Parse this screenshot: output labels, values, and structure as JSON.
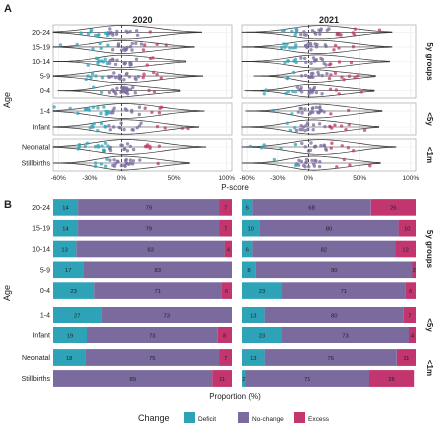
{
  "chart_data": [
    {
      "panel": "A",
      "type": "scatter",
      "subtype": "violin-jitter",
      "xlabel": "P-score",
      "ylabel": "Age",
      "columns": [
        "2020",
        "2021"
      ],
      "x_ticks": [
        "-60%",
        "-30%",
        "0%",
        "50%",
        "100%"
      ],
      "x_tick_values": [
        -0.6,
        -0.3,
        0,
        0.5,
        1.0
      ],
      "xlim": [
        -0.65,
        1.05
      ],
      "vertical_reference_line": 0,
      "grid": true,
      "row_groups": [
        {
          "label": "5y groups",
          "categories": [
            "20-24",
            "15-19",
            "10-14",
            "5-9",
            "0-4"
          ]
        },
        {
          "label": "<5y",
          "categories": [
            "1-4",
            "Infant"
          ]
        },
        {
          "label": "<1m",
          "categories": [
            "Neonatal",
            "Stillbirths"
          ]
        }
      ],
      "point_color_meaning": {
        "deficit": "#2ea3b8",
        "no_change": "#7a6a9e",
        "excess": "#c2356e"
      }
    },
    {
      "panel": "B",
      "type": "bar",
      "orientation": "horizontal",
      "stacked": true,
      "xlabel": "Proportion (%)",
      "ylabel": "Age",
      "columns": [
        "2020",
        "2021"
      ],
      "legend": {
        "title": "Change",
        "position": "bottom",
        "entries": [
          {
            "key": "deficit",
            "label": "Deficit",
            "color": "#2ea3b8"
          },
          {
            "key": "no_change",
            "label": "No-change",
            "color": "#7a6a9e"
          },
          {
            "key": "excess",
            "label": "Excess",
            "color": "#c2356e"
          }
        ]
      },
      "row_groups": [
        {
          "label": "5y groups",
          "categories": [
            "20-24",
            "15-19",
            "10-14",
            "5-9",
            "0-4"
          ]
        },
        {
          "label": "<5y",
          "categories": [
            "1-4",
            "Infant"
          ]
        },
        {
          "label": "<1m",
          "categories": [
            "Neonatal",
            "Stillbirths"
          ]
        }
      ],
      "series": [
        {
          "column": "2020",
          "category": "20-24",
          "deficit": 14,
          "no_change": 79,
          "excess": 7
        },
        {
          "column": "2020",
          "category": "15-19",
          "deficit": 14,
          "no_change": 79,
          "excess": 7
        },
        {
          "column": "2020",
          "category": "10-14",
          "deficit": 13,
          "no_change": 83,
          "excess": 4
        },
        {
          "column": "2020",
          "category": "5-9",
          "deficit": 17,
          "no_change": 83,
          "excess": 0
        },
        {
          "column": "2020",
          "category": "0-4",
          "deficit": 23,
          "no_change": 71,
          "excess": 6
        },
        {
          "column": "2020",
          "category": "1-4",
          "deficit": 27,
          "no_change": 73,
          "excess": 0
        },
        {
          "column": "2020",
          "category": "Infant",
          "deficit": 19,
          "no_change": 73,
          "excess": 8
        },
        {
          "column": "2020",
          "category": "Neonatal",
          "deficit": 18,
          "no_change": 75,
          "excess": 7
        },
        {
          "column": "2020",
          "category": "Stillbirths",
          "deficit": 0,
          "no_change": 89,
          "excess": 11
        },
        {
          "column": "2021",
          "category": "20-24",
          "deficit": 6,
          "no_change": 68,
          "excess": 26
        },
        {
          "column": "2021",
          "category": "15-19",
          "deficit": 10,
          "no_change": 80,
          "excess": 10
        },
        {
          "column": "2021",
          "category": "10-14",
          "deficit": 6,
          "no_change": 82,
          "excess": 12
        },
        {
          "column": "2021",
          "category": "5-9",
          "deficit": 8,
          "no_change": 90,
          "excess": 2
        },
        {
          "column": "2021",
          "category": "0-4",
          "deficit": 23,
          "no_change": 71,
          "excess": 6
        },
        {
          "column": "2021",
          "category": "1-4",
          "deficit": 13,
          "no_change": 80,
          "excess": 7
        },
        {
          "column": "2021",
          "category": "Infant",
          "deficit": 23,
          "no_change": 73,
          "excess": 4
        },
        {
          "column": "2021",
          "category": "Neonatal",
          "deficit": 13,
          "no_change": 76,
          "excess": 11
        },
        {
          "column": "2021",
          "category": "Stillbirths",
          "deficit": 2,
          "no_change": 71,
          "excess": 26
        }
      ]
    }
  ]
}
